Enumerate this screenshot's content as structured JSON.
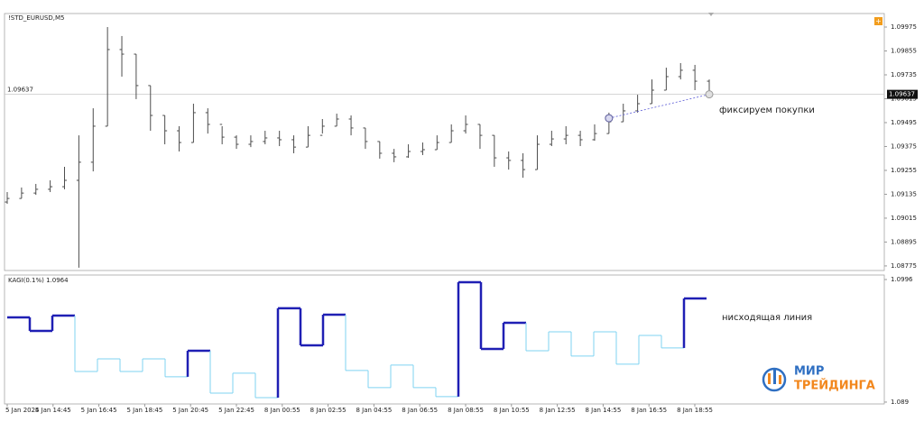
{
  "chart_data": [
    {
      "type": "ohlc",
      "title": "!STD_EURUSD,M5",
      "color": "#4d4d4d",
      "ylim": [
        1.08752,
        1.10043
      ],
      "yticks": [
        1.09975,
        1.09855,
        1.09735,
        1.09615,
        1.09495,
        1.09375,
        1.09255,
        1.09135,
        1.09015,
        1.08895,
        1.08775
      ],
      "last_price": 1.09637,
      "open": [
        1.09096,
        1.09114,
        1.09141,
        1.0916,
        1.09173,
        1.09205,
        1.09296,
        1.09477,
        1.09862,
        1.09839,
        1.09681,
        1.09531,
        1.09454,
        1.09395,
        1.09545,
        1.09486,
        1.09422,
        1.09386,
        1.094,
        1.09418,
        1.09409,
        1.09372,
        1.09431,
        1.09477,
        1.09513,
        1.09468,
        1.094,
        1.09341,
        1.09323,
        1.0935,
        1.09359,
        1.09395,
        1.09454,
        1.09486,
        1.09431,
        1.09318,
        1.09305,
        1.09259,
        1.09386,
        1.09413,
        1.09431,
        1.09409,
        1.0944,
        1.09499,
        1.09554,
        1.0959,
        1.09658,
        1.09726,
        1.09758,
        1.09703
      ],
      "high": [
        1.09146,
        1.09169,
        1.09187,
        1.09205,
        1.09273,
        1.09431,
        1.09567,
        1.09975,
        1.0993,
        1.09839,
        1.09681,
        1.09531,
        1.09477,
        1.0959,
        1.09567,
        1.09477,
        1.09431,
        1.09431,
        1.09454,
        1.09454,
        1.09431,
        1.09477,
        1.09513,
        1.0954,
        1.09531,
        1.09468,
        1.094,
        1.09363,
        1.09386,
        1.09395,
        1.09431,
        1.09486,
        1.09531,
        1.09486,
        1.09431,
        1.0935,
        1.09341,
        1.09431,
        1.09454,
        1.09477,
        1.09454,
        1.09486,
        1.09545,
        1.0959,
        1.09635,
        1.09712,
        1.09771,
        1.09794,
        1.09785,
        1.09712
      ],
      "low": [
        1.09087,
        1.09114,
        1.09132,
        1.09146,
        1.0916,
        1.08766,
        1.0925,
        1.09477,
        1.09726,
        1.09613,
        1.09454,
        1.09386,
        1.0935,
        1.09395,
        1.0944,
        1.09386,
        1.09363,
        1.09372,
        1.09386,
        1.09377,
        1.09341,
        1.09372,
        1.0944,
        1.09477,
        1.09431,
        1.09363,
        1.09314,
        1.09296,
        1.09318,
        1.09332,
        1.09359,
        1.09395,
        1.0944,
        1.09363,
        1.09273,
        1.09259,
        1.09218,
        1.09259,
        1.09377,
        1.09386,
        1.09377,
        1.09404,
        1.0944,
        1.09499,
        1.09545,
        1.0959,
        1.09658,
        1.09712,
        1.09658,
        1.09631
      ],
      "close": [
        1.09114,
        1.09141,
        1.0916,
        1.09173,
        1.09205,
        1.09296,
        1.09477,
        1.09862,
        1.09839,
        1.09681,
        1.09531,
        1.09454,
        1.09395,
        1.09545,
        1.09486,
        1.09422,
        1.09386,
        1.094,
        1.09418,
        1.09409,
        1.09372,
        1.09431,
        1.09477,
        1.09513,
        1.09468,
        1.094,
        1.09341,
        1.09323,
        1.0935,
        1.09359,
        1.09395,
        1.09454,
        1.09486,
        1.09431,
        1.09318,
        1.09305,
        1.09259,
        1.09386,
        1.09413,
        1.09431,
        1.09409,
        1.0944,
        1.09499,
        1.09554,
        1.0959,
        1.09658,
        1.09726,
        1.09758,
        1.09703,
        1.09649
      ],
      "trade": {
        "entry": 1.09517,
        "exit": 1.09637,
        "label": "фиксируем покупки",
        "color": "#5b5bd6"
      }
    },
    {
      "type": "kagi",
      "title": "KAGI(0.1%) 1.0964",
      "annotation": "нисходящая линия",
      "ylim": [
        1.08884,
        1.09999
      ],
      "yticks": [
        1.0996,
        1.089
      ],
      "thick_color": "#1f1fb4",
      "thin_color": "#7fd3f2",
      "values": [
        1.09633,
        1.09516,
        1.09648,
        1.09165,
        1.09274,
        1.09165,
        1.09274,
        1.09119,
        1.09344,
        1.08978,
        1.0915,
        1.08939,
        1.09711,
        1.09391,
        1.09656,
        1.09173,
        1.09025,
        1.0922,
        1.09025,
        1.08947,
        1.09937,
        1.0936,
        1.09586,
        1.09344,
        1.09508,
        1.09298,
        1.09508,
        1.09228,
        1.09477,
        1.09368,
        1.09796
      ],
      "thick": [
        true,
        true,
        true,
        false,
        false,
        false,
        false,
        false,
        true,
        false,
        false,
        false,
        true,
        true,
        true,
        false,
        false,
        false,
        false,
        false,
        true,
        true,
        true,
        false,
        false,
        false,
        false,
        false,
        false,
        false,
        true
      ],
      "xticks": [
        "5 Jan 2024",
        "5 Jan 14:45",
        "5 Jan 16:45",
        "5 Jan 18:45",
        "5 Jan 20:45",
        "5 Jan 22:45",
        "8 Jan 00:55",
        "8 Jan 02:55",
        "8 Jan 04:55",
        "8 Jan 06:55",
        "8 Jan 08:55",
        "8 Jan 10:55",
        "8 Jan 12:55",
        "8 Jan 14:55",
        "8 Jan 16:55",
        "8 Jan 18:55"
      ]
    }
  ],
  "brand": {
    "line1": "МИР",
    "line2": "ТРЕЙДИНГА"
  }
}
